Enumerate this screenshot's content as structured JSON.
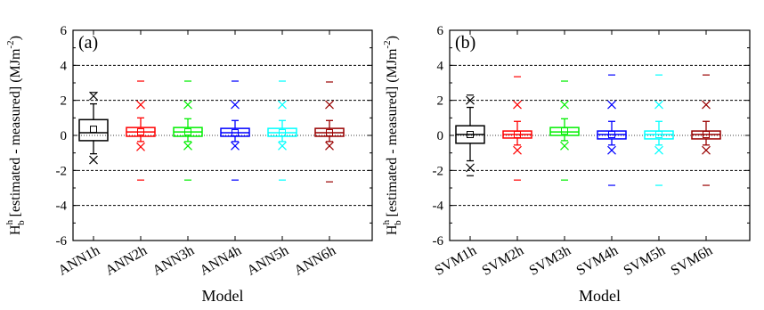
{
  "chart_data": [
    {
      "type": "box",
      "panel_label": "(a)",
      "xlabel": "Model",
      "ylabel": {
        "main": "H",
        "superscript": "h",
        "subscript": "b",
        "text": " [estimated - measured] (MJm",
        "unit_superscript": "-2",
        "close": ")"
      },
      "ylim": [
        -6,
        6
      ],
      "yticks": [
        "-6",
        "-4",
        "-2",
        "0",
        "2",
        "4",
        "6"
      ],
      "reference_lines": [
        -4,
        -2,
        2,
        4
      ],
      "categories": [
        "ANN1h",
        "ANN2h",
        "ANN3h",
        "ANN4h",
        "ANN5h",
        "ANN6h"
      ],
      "series": [
        {
          "category": "ANN1h",
          "color": "#000000",
          "q1": -0.3,
          "median": 0.15,
          "q3": 0.9,
          "whisker_low": -1.05,
          "whisker_high": 1.8,
          "mean": 0.35,
          "p1": -1.4,
          "p99": 2.25,
          "min": null,
          "max": 2.45
        },
        {
          "category": "ANN2h",
          "color": "#ff0000",
          "q1": -0.05,
          "median": 0.2,
          "q3": 0.45,
          "whisker_low": -0.35,
          "whisker_high": 1.0,
          "mean": 0.2,
          "p1": -0.65,
          "p99": 1.75,
          "min": -2.55,
          "max": 3.1
        },
        {
          "category": "ANN3h",
          "color": "#00ee00",
          "q1": -0.05,
          "median": 0.2,
          "q3": 0.45,
          "whisker_low": -0.35,
          "whisker_high": 0.95,
          "mean": 0.2,
          "p1": -0.6,
          "p99": 1.75,
          "min": -2.55,
          "max": 3.1
        },
        {
          "category": "ANN4h",
          "color": "#0000ff",
          "q1": -0.05,
          "median": 0.15,
          "q3": 0.4,
          "whisker_low": -0.35,
          "whisker_high": 0.85,
          "mean": 0.15,
          "p1": -0.6,
          "p99": 1.75,
          "min": -2.55,
          "max": 3.1
        },
        {
          "category": "ANN5h",
          "color": "#00ffff",
          "q1": -0.05,
          "median": 0.15,
          "q3": 0.4,
          "whisker_low": -0.35,
          "whisker_high": 0.85,
          "mean": 0.15,
          "p1": -0.6,
          "p99": 1.75,
          "min": -2.55,
          "max": 3.1
        },
        {
          "category": "ANN6h",
          "color": "#990000",
          "q1": -0.05,
          "median": 0.15,
          "q3": 0.4,
          "whisker_low": -0.35,
          "whisker_high": 0.85,
          "mean": 0.15,
          "p1": -0.6,
          "p99": 1.75,
          "min": -2.65,
          "max": 3.05
        }
      ]
    },
    {
      "type": "box",
      "panel_label": "(b)",
      "xlabel": "Model",
      "ylabel": {
        "main": "H",
        "superscript": "h",
        "subscript": "b",
        "text": " [estimated - measured] (MJm",
        "unit_superscript": "-2",
        "close": ")"
      },
      "ylim": [
        -6,
        6
      ],
      "yticks": [
        "-6",
        "-4",
        "-2",
        "0",
        "2",
        "4",
        "6"
      ],
      "reference_lines": [
        -4,
        -2,
        2,
        4
      ],
      "categories": [
        "SVM1h",
        "SVM2h",
        "SVM3h",
        "SVM4h",
        "SVM5h",
        "SVM6h"
      ],
      "series": [
        {
          "category": "SVM1h",
          "color": "#000000",
          "q1": -0.45,
          "median": 0.05,
          "q3": 0.55,
          "whisker_low": -1.45,
          "whisker_high": 1.6,
          "mean": 0.05,
          "p1": -1.85,
          "p99": 2.0,
          "min": -2.3,
          "max": 2.3
        },
        {
          "category": "SVM2h",
          "color": "#ff0000",
          "q1": -0.15,
          "median": 0.05,
          "q3": 0.25,
          "whisker_low": -0.55,
          "whisker_high": 0.8,
          "mean": 0.05,
          "p1": -0.85,
          "p99": 1.75,
          "min": -2.55,
          "max": 3.35
        },
        {
          "category": "SVM3h",
          "color": "#00ee00",
          "q1": 0.0,
          "median": 0.2,
          "q3": 0.45,
          "whisker_low": -0.3,
          "whisker_high": 0.95,
          "mean": 0.25,
          "p1": -0.6,
          "p99": 1.75,
          "min": -2.55,
          "max": 3.1
        },
        {
          "category": "SVM4h",
          "color": "#0000ff",
          "q1": -0.2,
          "median": 0.05,
          "q3": 0.25,
          "whisker_low": -0.55,
          "whisker_high": 0.8,
          "mean": 0.05,
          "p1": -0.85,
          "p99": 1.75,
          "min": -2.85,
          "max": 3.45
        },
        {
          "category": "SVM5h",
          "color": "#00ffff",
          "q1": -0.2,
          "median": 0.05,
          "q3": 0.25,
          "whisker_low": -0.55,
          "whisker_high": 0.8,
          "mean": 0.05,
          "p1": -0.85,
          "p99": 1.75,
          "min": -2.85,
          "max": 3.45
        },
        {
          "category": "SVM6h",
          "color": "#990000",
          "q1": -0.2,
          "median": 0.05,
          "q3": 0.25,
          "whisker_low": -0.55,
          "whisker_high": 0.8,
          "mean": 0.05,
          "p1": -0.85,
          "p99": 1.75,
          "min": -2.85,
          "max": 3.45
        }
      ]
    }
  ]
}
